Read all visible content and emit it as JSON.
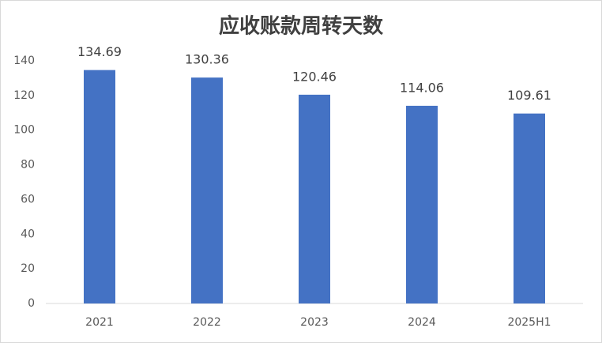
{
  "chart_data": {
    "type": "bar",
    "title": "应收账款周转天数",
    "categories": [
      "2021",
      "2022",
      "2023",
      "2024",
      "2025H1"
    ],
    "values": [
      134.69,
      130.36,
      120.46,
      114.06,
      109.61
    ],
    "color": "#4472c4",
    "ylim": [
      0,
      140
    ],
    "yticks": [
      0,
      20,
      40,
      60,
      80,
      100,
      120,
      140
    ],
    "grid": false
  }
}
